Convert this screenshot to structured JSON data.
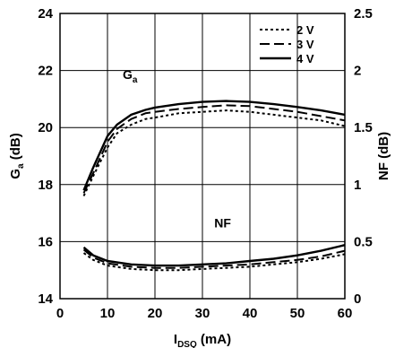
{
  "chart_data": {
    "type": "line",
    "x_ticks": [
      "0",
      "10",
      "20",
      "30",
      "40",
      "50",
      "60"
    ],
    "left_ticks": [
      "14",
      "16",
      "18",
      "20",
      "22",
      "24"
    ],
    "right_ticks": [
      "0",
      "0.5",
      "1",
      "1.5",
      "2",
      "2.5"
    ],
    "xlim": [
      0,
      60
    ],
    "ylim_left": [
      14,
      24
    ],
    "ylim_right": [
      0,
      2.5
    ],
    "grid": true,
    "legend_position": "top-right",
    "xlabel": {
      "main": "I",
      "sub": "DSQ",
      "unit": " (mA)"
    },
    "ylabel_left": {
      "main": "G",
      "sub": "a",
      "unit": " (dB)"
    },
    "ylabel_right": "NF (dB)",
    "annotations": {
      "ga": {
        "main": "G",
        "sub": "a"
      },
      "nf": "NF"
    },
    "series": [
      {
        "name": "2 V",
        "style": "dotted",
        "ga": {
          "x": [
            5,
            7,
            10,
            12,
            15,
            18,
            20,
            25,
            30,
            35,
            40,
            45,
            50,
            55,
            60
          ],
          "y": [
            17.6,
            18.3,
            19.3,
            19.8,
            20.1,
            20.3,
            20.35,
            20.5,
            20.55,
            20.6,
            20.55,
            20.45,
            20.35,
            20.25,
            20.05
          ]
        },
        "nf": {
          "x": [
            5,
            7,
            10,
            15,
            20,
            25,
            30,
            35,
            40,
            45,
            50,
            55,
            60
          ],
          "y": [
            0.4,
            0.34,
            0.29,
            0.26,
            0.25,
            0.25,
            0.26,
            0.27,
            0.28,
            0.3,
            0.32,
            0.35,
            0.39
          ]
        }
      },
      {
        "name": "3 V",
        "style": "dashed",
        "ga": {
          "x": [
            5,
            7,
            10,
            12,
            15,
            18,
            20,
            25,
            30,
            35,
            40,
            45,
            50,
            55,
            60
          ],
          "y": [
            17.7,
            18.4,
            19.5,
            19.95,
            20.3,
            20.5,
            20.55,
            20.65,
            20.72,
            20.78,
            20.75,
            20.65,
            20.55,
            20.4,
            20.25
          ]
        },
        "nf": {
          "x": [
            5,
            7,
            10,
            15,
            20,
            25,
            30,
            35,
            40,
            45,
            50,
            55,
            60
          ],
          "y": [
            0.43,
            0.36,
            0.31,
            0.28,
            0.27,
            0.27,
            0.28,
            0.29,
            0.3,
            0.32,
            0.34,
            0.37,
            0.42
          ]
        }
      },
      {
        "name": "4 V",
        "style": "solid",
        "ga": {
          "x": [
            5,
            7,
            10,
            12,
            15,
            18,
            20,
            25,
            30,
            35,
            40,
            45,
            50,
            55,
            60
          ],
          "y": [
            17.8,
            18.6,
            19.7,
            20.1,
            20.45,
            20.62,
            20.7,
            20.82,
            20.9,
            20.93,
            20.9,
            20.82,
            20.72,
            20.6,
            20.45
          ]
        },
        "nf": {
          "x": [
            5,
            7,
            10,
            15,
            20,
            25,
            30,
            35,
            40,
            45,
            50,
            55,
            60
          ],
          "y": [
            0.45,
            0.38,
            0.33,
            0.3,
            0.29,
            0.29,
            0.3,
            0.31,
            0.33,
            0.35,
            0.38,
            0.42,
            0.47
          ]
        }
      }
    ]
  }
}
